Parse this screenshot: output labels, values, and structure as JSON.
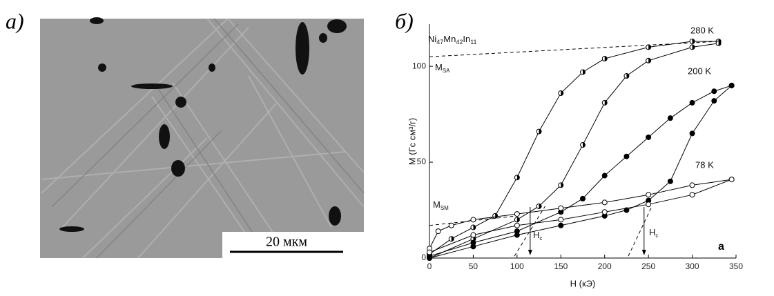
{
  "panel_labels": [
    "а)",
    "б)"
  ],
  "scale_bar": "20 мкм",
  "chart_data": {
    "type": "line",
    "xlabel": "H (кЭ)",
    "ylabel": "M (Гс см³/г)",
    "xlim": [
      0,
      350
    ],
    "xticks": [
      0,
      50,
      100,
      150,
      200,
      250,
      300,
      350
    ],
    "ylim": [
      0,
      122
    ],
    "yticks": [
      0,
      50,
      100
    ],
    "formula": [
      "Ni",
      "47",
      "Mn",
      "42",
      "In",
      "11"
    ],
    "msa": {
      "main": "M",
      "sub": "SA"
    },
    "msm": {
      "main": "M",
      "sub": "SM"
    },
    "hc": {
      "main": "H",
      "sub": "c"
    },
    "panel_letter": "a",
    "coercive_fields": [
      115,
      245
    ],
    "reference_lines": [
      {
        "x": [
          0,
          330
        ],
        "values": [
          105,
          113
        ]
      },
      {
        "x": [
          0,
          100
        ],
        "values": [
          17,
          22
        ]
      },
      {
        "x": [
          97,
          132
        ],
        "values": [
          1,
          27
        ]
      },
      {
        "x": [
          227,
          254
        ],
        "values": [
          1,
          27
        ]
      }
    ],
    "series": [
      {
        "name": "280 K",
        "color": "#000",
        "marker": "half",
        "x": [
          0,
          25,
          50,
          75,
          100,
          125,
          150,
          175,
          200,
          250,
          300,
          330
        ],
        "values": [
          2,
          10,
          16,
          22,
          42,
          66,
          86,
          97,
          104,
          110,
          113,
          113
        ]
      },
      {
        "name": "280 K",
        "color": "#000",
        "marker": "half",
        "x": [
          0,
          50,
          100,
          125,
          150,
          175,
          200,
          225,
          250,
          300,
          330
        ],
        "values": [
          0,
          10,
          20,
          27,
          38,
          59,
          81,
          95,
          103,
          110,
          112
        ]
      },
      {
        "name": "200 K",
        "color": "#000",
        "marker": "filled",
        "x": [
          0,
          50,
          100,
          150,
          175,
          200,
          225,
          250,
          275,
          300,
          325,
          345
        ],
        "values": [
          1,
          8,
          14,
          24,
          31,
          43,
          53,
          63,
          73,
          81,
          87,
          90
        ]
      },
      {
        "name": "200 K",
        "color": "#000",
        "marker": "filled",
        "x": [
          0,
          50,
          100,
          150,
          200,
          225,
          250,
          275,
          300,
          325,
          345
        ],
        "values": [
          0,
          6,
          12,
          17,
          22,
          25,
          30,
          40,
          65,
          82,
          90
        ]
      },
      {
        "name": "78 K",
        "color": "#000",
        "marker": "open",
        "x": [
          0,
          10,
          25,
          50,
          100,
          150,
          200,
          250,
          300,
          345
        ],
        "values": [
          5,
          14,
          17,
          20,
          23,
          26,
          29,
          33,
          38,
          41
        ]
      },
      {
        "name": "78 K",
        "color": "#000",
        "marker": "open",
        "x": [
          0,
          50,
          100,
          150,
          200,
          250,
          300,
          345
        ],
        "values": [
          3,
          12,
          17,
          20,
          24,
          28,
          33,
          41
        ]
      }
    ]
  }
}
